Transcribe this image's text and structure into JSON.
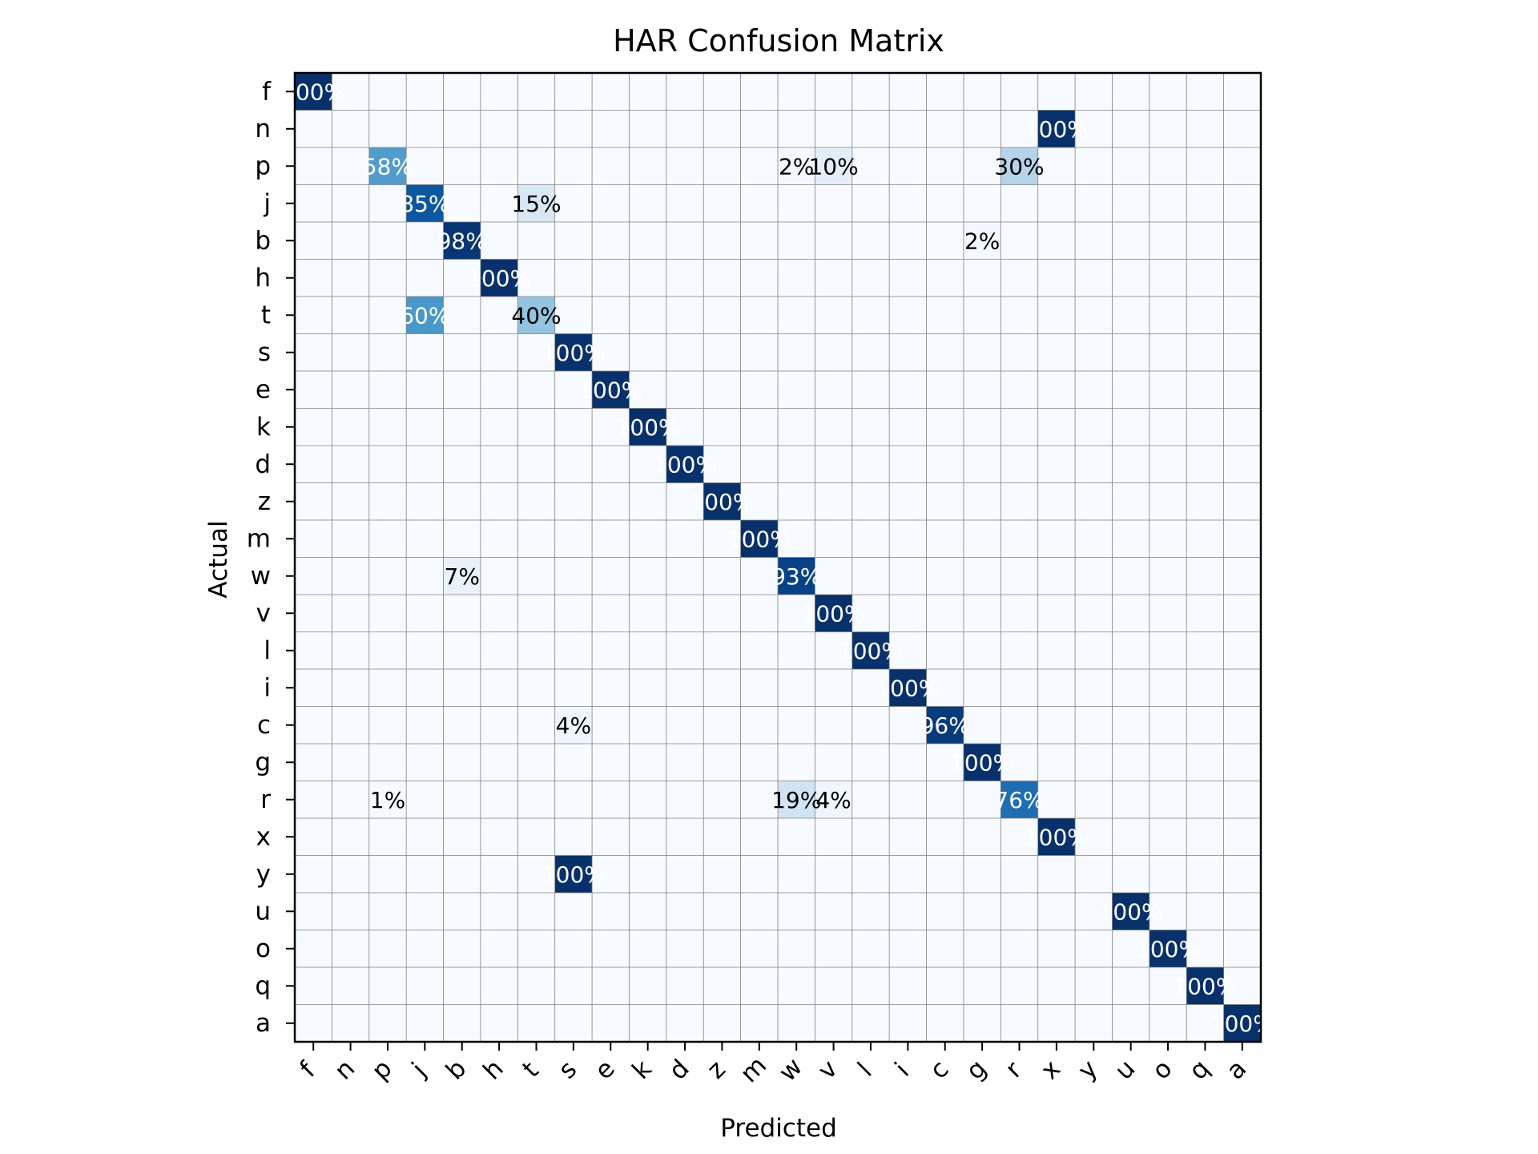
{
  "chart_data": {
    "type": "heatmap",
    "title": "HAR Confusion Matrix",
    "xlabel": "Predicted",
    "ylabel": "Actual",
    "x_categories": [
      "f",
      "n",
      "p",
      "j",
      "b",
      "h",
      "t",
      "s",
      "e",
      "k",
      "d",
      "z",
      "m",
      "w",
      "v",
      "l",
      "i",
      "c",
      "g",
      "r",
      "x",
      "y",
      "u",
      "o",
      "q",
      "a"
    ],
    "y_categories": [
      "f",
      "n",
      "p",
      "j",
      "b",
      "h",
      "t",
      "s",
      "e",
      "k",
      "d",
      "z",
      "m",
      "w",
      "v",
      "l",
      "i",
      "c",
      "g",
      "r",
      "x",
      "y",
      "u",
      "o",
      "q",
      "a"
    ],
    "value_format": "percent",
    "colormap": "Blues",
    "grid": true,
    "cells": [
      {
        "actual": "f",
        "predicted": "f",
        "value": 100
      },
      {
        "actual": "n",
        "predicted": "x",
        "value": 100
      },
      {
        "actual": "p",
        "predicted": "p",
        "value": 58
      },
      {
        "actual": "p",
        "predicted": "w",
        "value": 2
      },
      {
        "actual": "p",
        "predicted": "v",
        "value": 10
      },
      {
        "actual": "p",
        "predicted": "r",
        "value": 30
      },
      {
        "actual": "j",
        "predicted": "j",
        "value": 85
      },
      {
        "actual": "j",
        "predicted": "t",
        "value": 15
      },
      {
        "actual": "b",
        "predicted": "b",
        "value": 98
      },
      {
        "actual": "b",
        "predicted": "g",
        "value": 2
      },
      {
        "actual": "h",
        "predicted": "h",
        "value": 100
      },
      {
        "actual": "t",
        "predicted": "j",
        "value": 60
      },
      {
        "actual": "t",
        "predicted": "t",
        "value": 40
      },
      {
        "actual": "s",
        "predicted": "s",
        "value": 100
      },
      {
        "actual": "e",
        "predicted": "e",
        "value": 100
      },
      {
        "actual": "k",
        "predicted": "k",
        "value": 100
      },
      {
        "actual": "d",
        "predicted": "d",
        "value": 100
      },
      {
        "actual": "z",
        "predicted": "z",
        "value": 100
      },
      {
        "actual": "m",
        "predicted": "m",
        "value": 100
      },
      {
        "actual": "w",
        "predicted": "b",
        "value": 7
      },
      {
        "actual": "w",
        "predicted": "w",
        "value": 93
      },
      {
        "actual": "v",
        "predicted": "v",
        "value": 100
      },
      {
        "actual": "l",
        "predicted": "l",
        "value": 100
      },
      {
        "actual": "i",
        "predicted": "i",
        "value": 100
      },
      {
        "actual": "c",
        "predicted": "s",
        "value": 4
      },
      {
        "actual": "c",
        "predicted": "c",
        "value": 96
      },
      {
        "actual": "g",
        "predicted": "g",
        "value": 100
      },
      {
        "actual": "r",
        "predicted": "p",
        "value": 1
      },
      {
        "actual": "r",
        "predicted": "w",
        "value": 19
      },
      {
        "actual": "r",
        "predicted": "v",
        "value": 4
      },
      {
        "actual": "r",
        "predicted": "r",
        "value": 76
      },
      {
        "actual": "x",
        "predicted": "x",
        "value": 100
      },
      {
        "actual": "y",
        "predicted": "s",
        "value": 100
      },
      {
        "actual": "u",
        "predicted": "u",
        "value": 100
      },
      {
        "actual": "o",
        "predicted": "o",
        "value": 100
      },
      {
        "actual": "q",
        "predicted": "q",
        "value": 100
      },
      {
        "actual": "a",
        "predicted": "a",
        "value": 100
      }
    ]
  }
}
